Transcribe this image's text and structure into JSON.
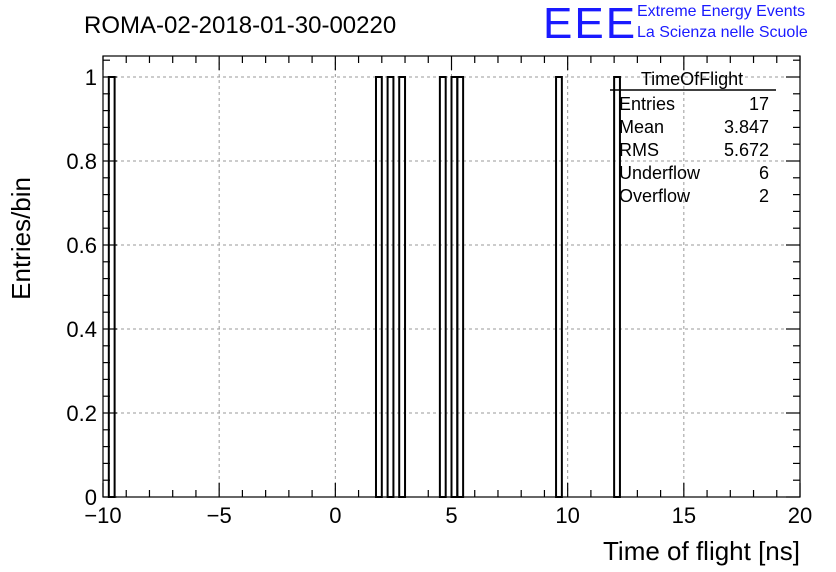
{
  "header": {
    "run_title": "ROMA-02-2018-01-30-00220",
    "logo_mark": "EEE",
    "logo_line1": "Extreme Energy Events",
    "logo_line2": "La Scienza nelle Scuole",
    "logo_color": "#1a1aff"
  },
  "stats_box": {
    "title": "TimeOfFlight",
    "rows": [
      {
        "label": "Entries",
        "value": "17"
      },
      {
        "label": "Mean",
        "value": "3.847"
      },
      {
        "label": "RMS",
        "value": "5.672"
      },
      {
        "label": "Underflow",
        "value": "6"
      },
      {
        "label": "Overflow",
        "value": "2"
      }
    ]
  },
  "chart_data": {
    "type": "bar",
    "histogram": true,
    "xlabel": "Time of flight [ns]",
    "ylabel": "Entries/bin",
    "xlim": [
      -10,
      20
    ],
    "ylim": [
      0,
      1.05
    ],
    "bin_width": 0.25,
    "grid": true,
    "x_ticks": [
      -10,
      -5,
      0,
      5,
      10,
      15,
      20
    ],
    "x_tick_labels": [
      "−10",
      "−5",
      "0",
      "5",
      "10",
      "15",
      "20"
    ],
    "y_ticks": [
      0,
      0.2,
      0.4,
      0.6,
      0.8,
      1
    ],
    "y_tick_labels": [
      "0",
      "0.2",
      "0.4",
      "0.6",
      "0.8",
      "1"
    ],
    "bins": [
      {
        "low": -9.75,
        "high": -9.5,
        "value": 1
      },
      {
        "low": 1.75,
        "high": 2.0,
        "value": 1
      },
      {
        "low": 2.25,
        "high": 2.5,
        "value": 1
      },
      {
        "low": 2.75,
        "high": 3.0,
        "value": 1
      },
      {
        "low": 4.5,
        "high": 4.75,
        "value": 1
      },
      {
        "low": 5.0,
        "high": 5.25,
        "value": 1
      },
      {
        "low": 5.25,
        "high": 5.5,
        "value": 1
      },
      {
        "low": 9.5,
        "high": 9.75,
        "value": 1
      },
      {
        "low": 12.0,
        "high": 12.25,
        "value": 1
      }
    ]
  }
}
